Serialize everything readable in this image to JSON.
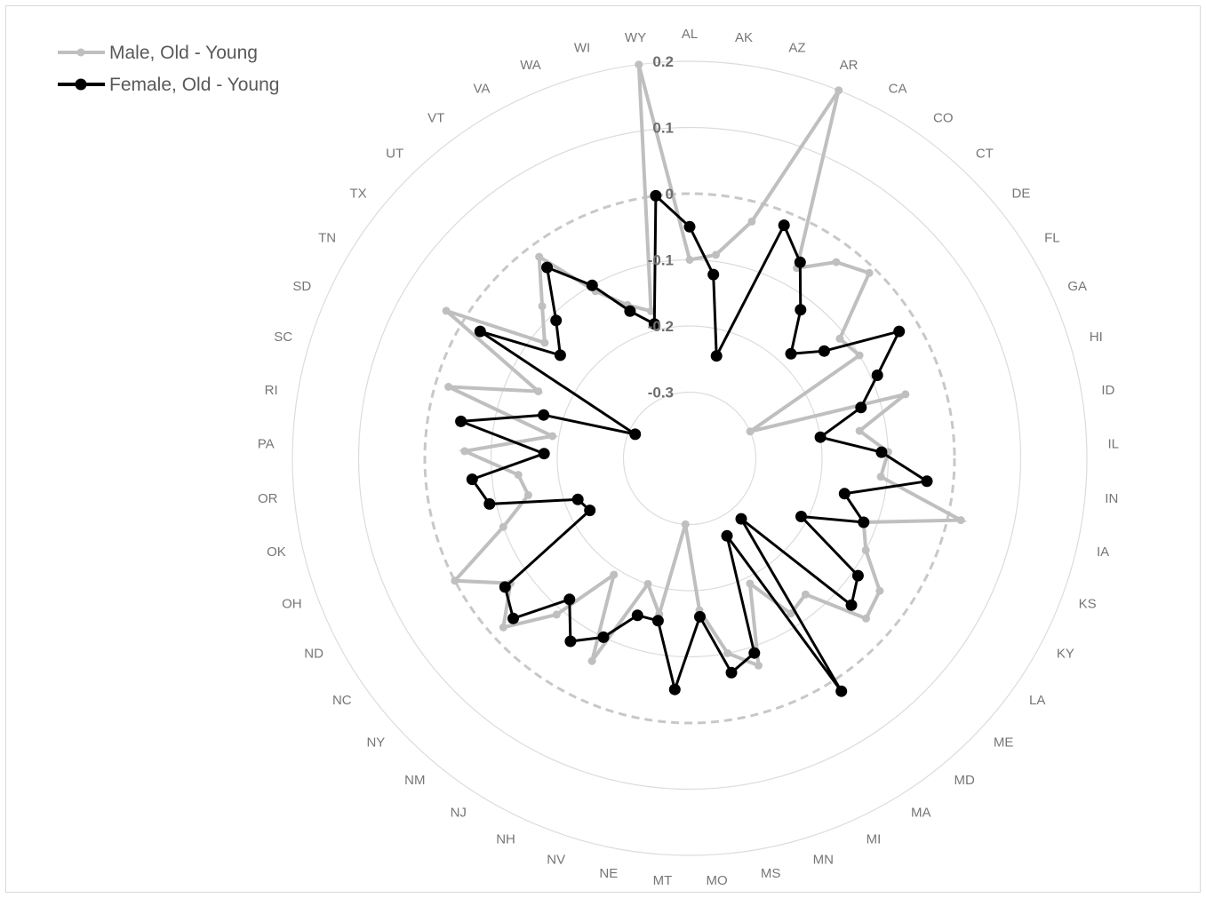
{
  "chart_data": {
    "type": "radar",
    "title": "",
    "legend_position": "top-left",
    "categories": [
      "AL",
      "AK",
      "AZ",
      "AR",
      "CA",
      "CO",
      "CT",
      "DE",
      "FL",
      "GA",
      "HI",
      "ID",
      "IL",
      "IN",
      "IA",
      "KS",
      "KY",
      "LA",
      "ME",
      "MD",
      "MA",
      "MI",
      "MN",
      "MS",
      "MO",
      "MT",
      "NE",
      "NV",
      "NH",
      "NJ",
      "NM",
      "NY",
      "NC",
      "ND",
      "OH",
      "OK",
      "OR",
      "PA",
      "RI",
      "SC",
      "SD",
      "TN",
      "TX",
      "UT",
      "VT",
      "VA",
      "WA",
      "WI",
      "WY"
    ],
    "radial_axis": {
      "min": -0.4,
      "max": 0.2,
      "ticks": [
        -0.3,
        -0.2,
        -0.1,
        0,
        0.1,
        0.2
      ],
      "tick_labels": [
        "-0.3",
        "-0.2",
        "-0.1",
        "0",
        "0.1",
        "0.2"
      ],
      "highlight_zero": true
    },
    "grid": true,
    "series": [
      {
        "name": "Male, Old - Young",
        "color": "#bfbfbf",
        "values": [
          -0.1,
          -0.09,
          -0.03,
          0.2,
          -0.07,
          -0.03,
          -0.01,
          -0.11,
          -0.1,
          -0.3,
          -0.06,
          -0.14,
          -0.1,
          -0.11,
          0.02,
          -0.12,
          -0.1,
          -0.05,
          -0.04,
          -0.13,
          -0.12,
          -0.19,
          -0.07,
          -0.1,
          -0.17,
          -0.3,
          -0.16,
          -0.2,
          -0.06,
          -0.19,
          -0.09,
          -0.02,
          -0.07,
          0.0,
          -0.1,
          -0.15,
          -0.14,
          -0.06,
          -0.19,
          -0.02,
          -0.15,
          0.03,
          -0.12,
          -0.08,
          -0.02,
          -0.11,
          -0.15,
          -0.17,
          0.2
        ]
      },
      {
        "name": "Female, Old - Young",
        "color": "#000000",
        "values": [
          -0.05,
          -0.12,
          -0.24,
          -0.02,
          -0.06,
          -0.12,
          -0.18,
          -0.14,
          -0.03,
          -0.09,
          -0.13,
          -0.2,
          -0.11,
          -0.04,
          -0.16,
          -0.12,
          -0.21,
          -0.09,
          -0.07,
          -0.28,
          0.02,
          -0.27,
          -0.09,
          -0.07,
          -0.16,
          -0.05,
          -0.15,
          -0.15,
          -0.1,
          -0.07,
          -0.12,
          -0.04,
          -0.06,
          -0.23,
          -0.22,
          -0.09,
          -0.07,
          -0.18,
          -0.05,
          -0.17,
          -0.31,
          -0.03,
          -0.15,
          -0.11,
          -0.04,
          -0.1,
          -0.16,
          -0.19,
          0.0
        ]
      }
    ]
  }
}
